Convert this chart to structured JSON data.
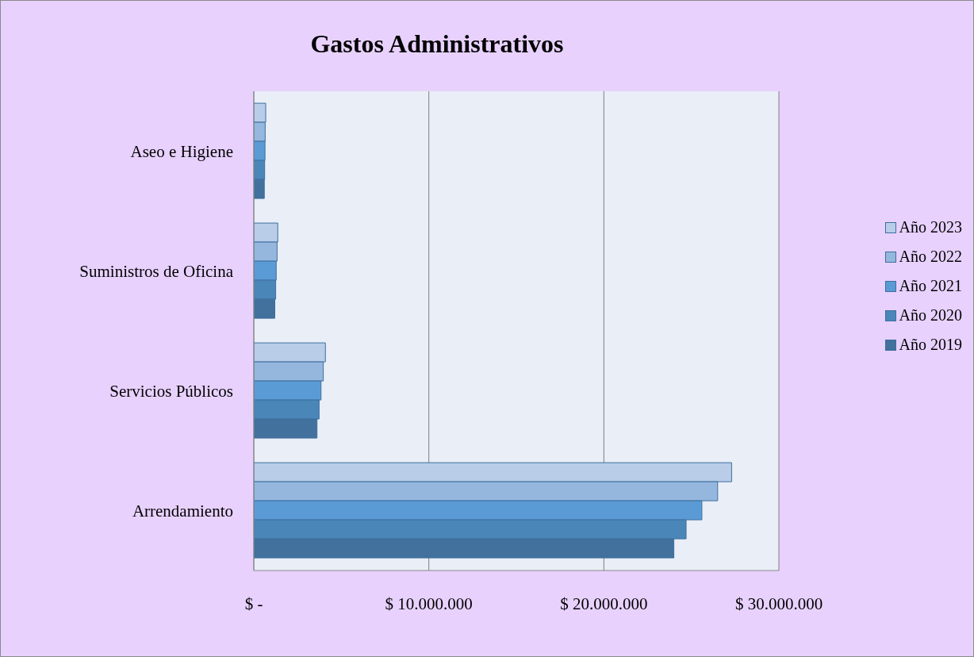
{
  "chart_data": {
    "type": "bar",
    "orientation": "horizontal",
    "title": "Gastos Administrativos",
    "categories": [
      "Aseo e Higiene",
      "Suministros de Oficina",
      "Servicios Públicos",
      "Arrendamiento"
    ],
    "series": [
      {
        "name": "Año 2023",
        "color": "#b9cde8",
        "values": [
          680000,
          1370000,
          4090000,
          27300000
        ]
      },
      {
        "name": "Año 2022",
        "color": "#95b7de",
        "values": [
          650000,
          1330000,
          3970000,
          26500000
        ]
      },
      {
        "name": "Año 2021",
        "color": "#5b9bd5",
        "values": [
          640000,
          1280000,
          3840000,
          25600000
        ]
      },
      {
        "name": "Año 2020",
        "color": "#4a86b8",
        "values": [
          620000,
          1250000,
          3730000,
          24700000
        ]
      },
      {
        "name": "Año 2019",
        "color": "#41719c",
        "values": [
          600000,
          1200000,
          3610000,
          24000000
        ]
      }
    ],
    "xlim": [
      0,
      30000000
    ],
    "xticks": [
      {
        "value": 0,
        "label": "$ -"
      },
      {
        "value": 10000000,
        "label": "$ 10.000.000"
      },
      {
        "value": 20000000,
        "label": "$ 20.000.000"
      },
      {
        "value": 30000000,
        "label": "$ 30.000.000"
      }
    ],
    "grid": "x",
    "legend": "right"
  }
}
